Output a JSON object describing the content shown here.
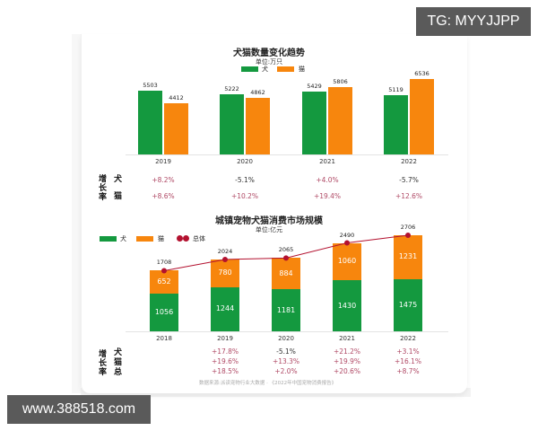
{
  "watermarks": {
    "top_right": "TG: MYYJJPP",
    "bottom_left": "www.388518.com"
  },
  "colors": {
    "dog": "#14993f",
    "cat": "#f7860d",
    "total": "#b3112f",
    "pct_positive": "#b04a66",
    "pct_negative": "#333333"
  },
  "chart1": {
    "title": "犬猫数量变化趋势",
    "unit": "单位:万只",
    "legend": {
      "dog": "犬",
      "cat": "猫"
    },
    "years": [
      "2019",
      "2020",
      "2021",
      "2022"
    ],
    "dog": [
      "5503",
      "5222",
      "5429",
      "5119"
    ],
    "cat": [
      "4412",
      "4862",
      "5806",
      "6536"
    ],
    "growth_label": [
      "增",
      "长",
      "率"
    ],
    "growth_rows": {
      "dog": "犬",
      "cat": "猫"
    },
    "growth_dog": [
      "+8.2%",
      "-5.1%",
      "+4.0%",
      "-5.7%"
    ],
    "growth_cat": [
      "+8.6%",
      "+10.2%",
      "+19.4%",
      "+12.6%"
    ]
  },
  "chart2": {
    "title": "城镇宠物犬猫消费市场规模",
    "unit": "单位:亿元",
    "legend": {
      "dog": "犬",
      "cat": "猫",
      "total": "总体"
    },
    "years": [
      "2018",
      "2019",
      "2020",
      "2021",
      "2022"
    ],
    "dog": [
      "1056",
      "1244",
      "1181",
      "1430",
      "1475"
    ],
    "cat": [
      "652",
      "780",
      "884",
      "1060",
      "1231"
    ],
    "total": [
      "1708",
      "2024",
      "2065",
      "2490",
      "2706"
    ],
    "growth_label": [
      "增",
      "长",
      "率"
    ],
    "growth_rows": {
      "dog": "犬",
      "cat": "猫",
      "total": "总"
    },
    "growth_dog": [
      "",
      "+17.8%",
      "-5.1%",
      "+21.2%",
      "+3.1%"
    ],
    "growth_cat": [
      "",
      "+19.6%",
      "+13.3%",
      "+19.9%",
      "+16.1%"
    ],
    "growth_total": [
      "",
      "+18.5%",
      "+2.0%",
      "+20.6%",
      "+8.7%"
    ]
  },
  "footnote": "数据来源:派读宠物行业大数据 · 《2022年中国宠物消费报告》",
  "chart_data": [
    {
      "type": "bar",
      "title": "犬猫数量变化趋势",
      "subtitle": "单位:万只",
      "categories": [
        "2019",
        "2020",
        "2021",
        "2022"
      ],
      "series": [
        {
          "name": "犬",
          "values": [
            5503,
            5222,
            5429,
            5119
          ],
          "color": "#14993f"
        },
        {
          "name": "猫",
          "values": [
            4412,
            4862,
            5806,
            6536
          ],
          "color": "#f7860d"
        }
      ],
      "growth_rates": {
        "犬": [
          "+8.2%",
          "-5.1%",
          "+4.0%",
          "-5.7%"
        ],
        "猫": [
          "+8.6%",
          "+10.2%",
          "+19.4%",
          "+12.6%"
        ]
      },
      "xlabel": "",
      "ylabel": "",
      "grid": false,
      "legend_position": "top"
    },
    {
      "type": "bar",
      "stacked": true,
      "title": "城镇宠物犬猫消费市场规模",
      "subtitle": "单位:亿元",
      "categories": [
        "2018",
        "2019",
        "2020",
        "2021",
        "2022"
      ],
      "series": [
        {
          "name": "犬",
          "values": [
            1056,
            1244,
            1181,
            1430,
            1475
          ],
          "color": "#14993f"
        },
        {
          "name": "猫",
          "values": [
            652,
            780,
            884,
            1060,
            1231
          ],
          "color": "#f7860d"
        },
        {
          "name": "总体",
          "type": "line",
          "values": [
            1708,
            2024,
            2065,
            2490,
            2706
          ],
          "color": "#b3112f"
        }
      ],
      "growth_rates": {
        "犬": [
          null,
          "+17.8%",
          "-5.1%",
          "+21.2%",
          "+3.1%"
        ],
        "猫": [
          null,
          "+19.6%",
          "+13.3%",
          "+19.9%",
          "+16.1%"
        ],
        "总": [
          null,
          "+18.5%",
          "+2.0%",
          "+20.6%",
          "+8.7%"
        ]
      },
      "xlabel": "",
      "ylabel": "",
      "grid": false,
      "legend_position": "top-left"
    }
  ]
}
